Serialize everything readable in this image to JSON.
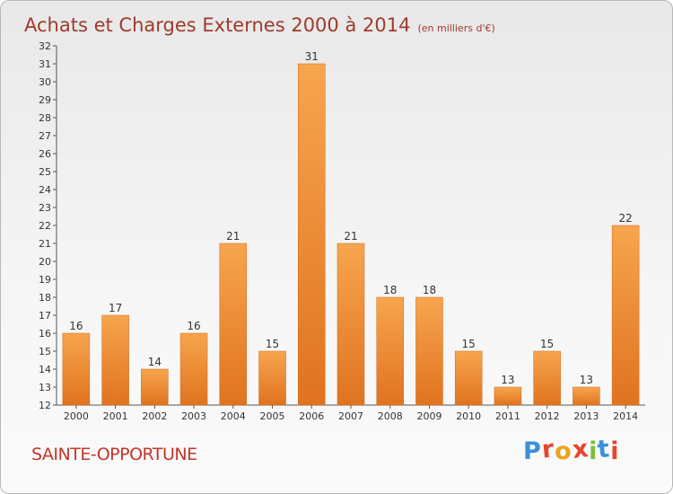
{
  "header": {
    "title": "Achats et Charges Externes 2000 à 2014",
    "subtitle": "(en milliers d'€)"
  },
  "footer": {
    "commune": "SAINTE-OPPORTUNE",
    "brand": {
      "letters": [
        "P",
        "r",
        "o",
        "x",
        "i",
        "t",
        "i"
      ],
      "colors": [
        "#3a8fd8",
        "#e8442e",
        "#f0a020",
        "#e8442e",
        "#7cbf3c",
        "#3a8fd8",
        "#e8442e"
      ]
    }
  },
  "colors": {
    "bar_light": "#f7a54e",
    "bar_dark": "#e0731f",
    "title": "#9e3a2c",
    "commune": "#c2362b"
  },
  "chart_data": {
    "type": "bar",
    "title": "Achats et Charges Externes 2000 à 2014",
    "subtitle": "(en milliers d'€)",
    "categories": [
      "2000",
      "2001",
      "2002",
      "2003",
      "2004",
      "2005",
      "2006",
      "2007",
      "2008",
      "2009",
      "2010",
      "2011",
      "2012",
      "2013",
      "2014"
    ],
    "values": [
      16,
      17,
      14,
      16,
      21,
      15,
      31,
      21,
      18,
      18,
      15,
      13,
      15,
      13,
      22
    ],
    "ylim": [
      12,
      32
    ],
    "yticks": [
      12,
      13,
      14,
      15,
      16,
      17,
      18,
      19,
      20,
      21,
      22,
      23,
      24,
      25,
      26,
      27,
      28,
      29,
      30,
      31,
      32
    ],
    "grid": false,
    "legend": "none"
  }
}
